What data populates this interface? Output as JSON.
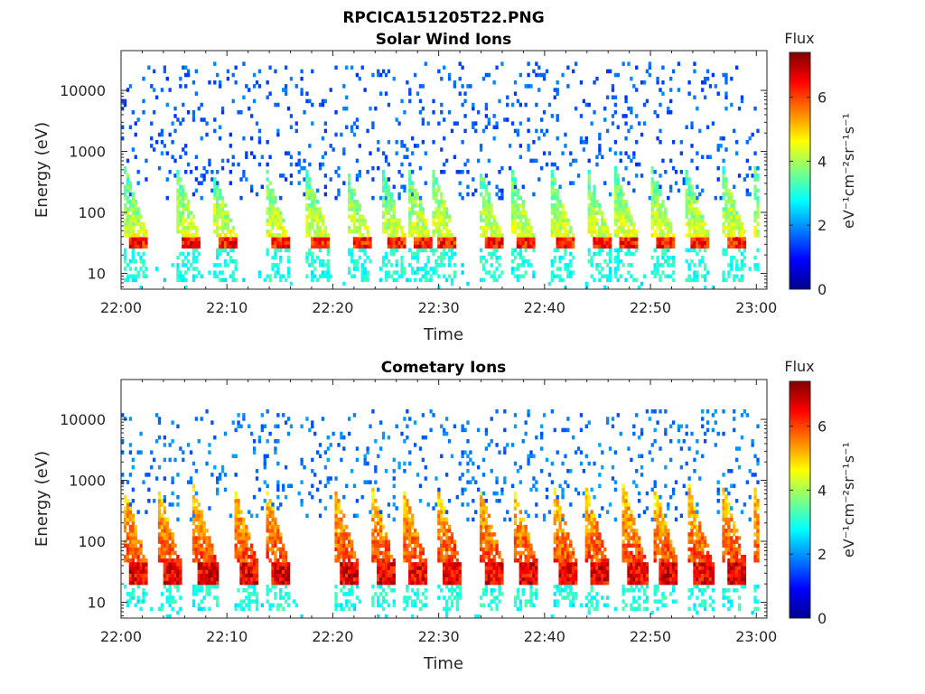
{
  "figure": {
    "title": "RPCICA151205T22.PNG"
  },
  "chart_data": [
    {
      "type": "heatmap",
      "title": "Solar Wind Ions",
      "xlabel": "Time",
      "ylabel": "Energy (eV)",
      "x_tick_labels": [
        "22:00",
        "22:10",
        "22:20",
        "22:30",
        "22:40",
        "22:50",
        "23:00"
      ],
      "x_range_minutes": [
        0,
        61
      ],
      "y_scale": "log",
      "y_tick_values": [
        10,
        100,
        1000,
        10000
      ],
      "y_tick_labels": [
        "10",
        "100",
        "1000",
        "10000"
      ],
      "y_range": [
        5.5,
        45000
      ],
      "colorbar": {
        "title": "Flux",
        "label": "eV⁻¹cm⁻²sr⁻¹s⁻¹",
        "range": [
          0,
          7.4
        ],
        "tick_values": [
          0,
          2,
          4,
          6
        ],
        "tick_labels": [
          "0",
          "2",
          "4",
          "6"
        ],
        "colormap": "jet"
      },
      "cycle_start_minutes": [
        0.3,
        5.2,
        8.6,
        13.6,
        17.4,
        21.3,
        24.6,
        27.1,
        29.4,
        33.8,
        36.8,
        40.5,
        44.0,
        46.6,
        50.1,
        53.3,
        56.8,
        59.8
      ],
      "features": {
        "core_energy_eV": [
          25,
          40
        ],
        "core_flux": 6.3,
        "plume_top_eV": 600,
        "plume_flux": 3.2,
        "background_flux": 1.6,
        "background_top_eV": 30000
      }
    },
    {
      "type": "heatmap",
      "title": "Cometary Ions",
      "xlabel": "Time",
      "ylabel": "Energy (eV)",
      "x_tick_labels": [
        "22:00",
        "22:10",
        "22:20",
        "22:30",
        "22:40",
        "22:50",
        "23:00"
      ],
      "x_range_minutes": [
        0,
        61
      ],
      "y_scale": "log",
      "y_tick_values": [
        10,
        100,
        1000,
        10000
      ],
      "y_tick_labels": [
        "10",
        "100",
        "1000",
        "10000"
      ],
      "y_range": [
        5.5,
        45000
      ],
      "colorbar": {
        "title": "Flux",
        "label": "eV⁻¹cm⁻²sr⁻¹s⁻¹",
        "range": [
          0,
          7.4
        ],
        "tick_values": [
          0,
          2,
          4,
          6
        ],
        "tick_labels": [
          "0",
          "2",
          "4",
          "6"
        ],
        "colormap": "jet"
      },
      "cycle_start_minutes": [
        0.2,
        3.4,
        6.8,
        10.6,
        13.6,
        20.1,
        23.6,
        26.6,
        29.8,
        33.8,
        37.0,
        40.8,
        43.8,
        47.4,
        50.3,
        53.6,
        56.8,
        59.7
      ],
      "features": {
        "core_energy_eV": [
          20,
          45
        ],
        "core_flux": 6.6,
        "plume_top_eV": 900,
        "plume_flux": 4.8,
        "background_flux": 1.8,
        "background_top_eV": 15000
      }
    }
  ]
}
